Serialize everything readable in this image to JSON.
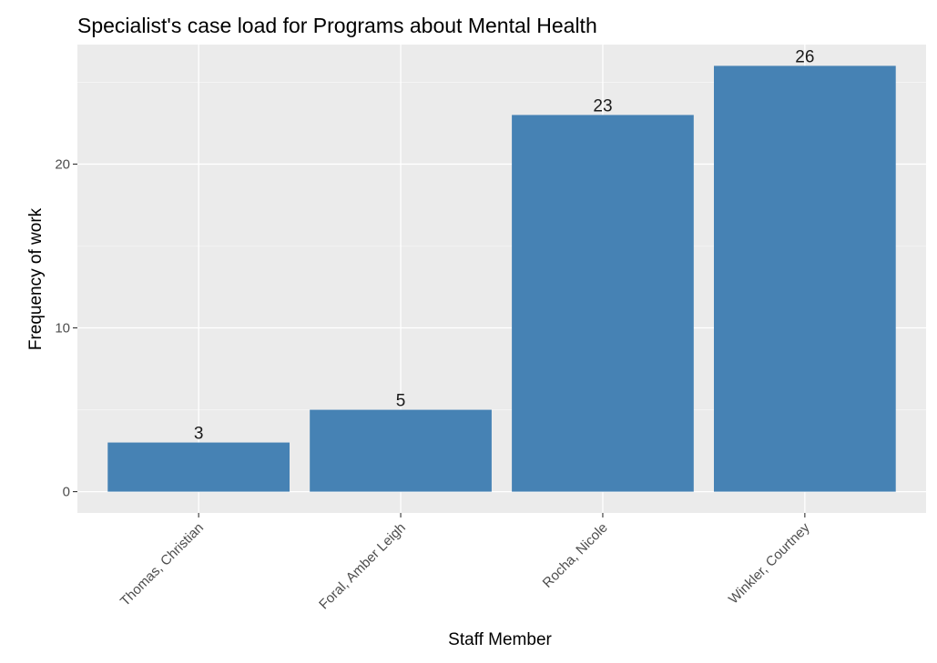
{
  "chart_data": {
    "type": "bar",
    "title": "Specialist's case load for Programs about Mental Health",
    "xlabel": "Staff Member",
    "ylabel": "Frequency of work",
    "categories": [
      "Thomas, Christian",
      "Foral, Amber Leigh",
      "Rocha, Nicole",
      "Winkler, Courtney"
    ],
    "values": [
      3,
      5,
      23,
      26
    ],
    "data_labels": [
      "3",
      "5",
      "23",
      "26"
    ],
    "y_ticks": [
      0,
      10,
      20
    ],
    "y_tick_labels": [
      "0",
      "10",
      "20"
    ],
    "ylim": [
      -1.3,
      27.3
    ],
    "grid": true,
    "legend": "none",
    "colors": {
      "bar": "#4682b4",
      "panel_background": "#ebebeb",
      "grid_major": "#ffffff",
      "grid_minor": "#f5f5f5",
      "tick_text": "#4d4d4d"
    }
  }
}
